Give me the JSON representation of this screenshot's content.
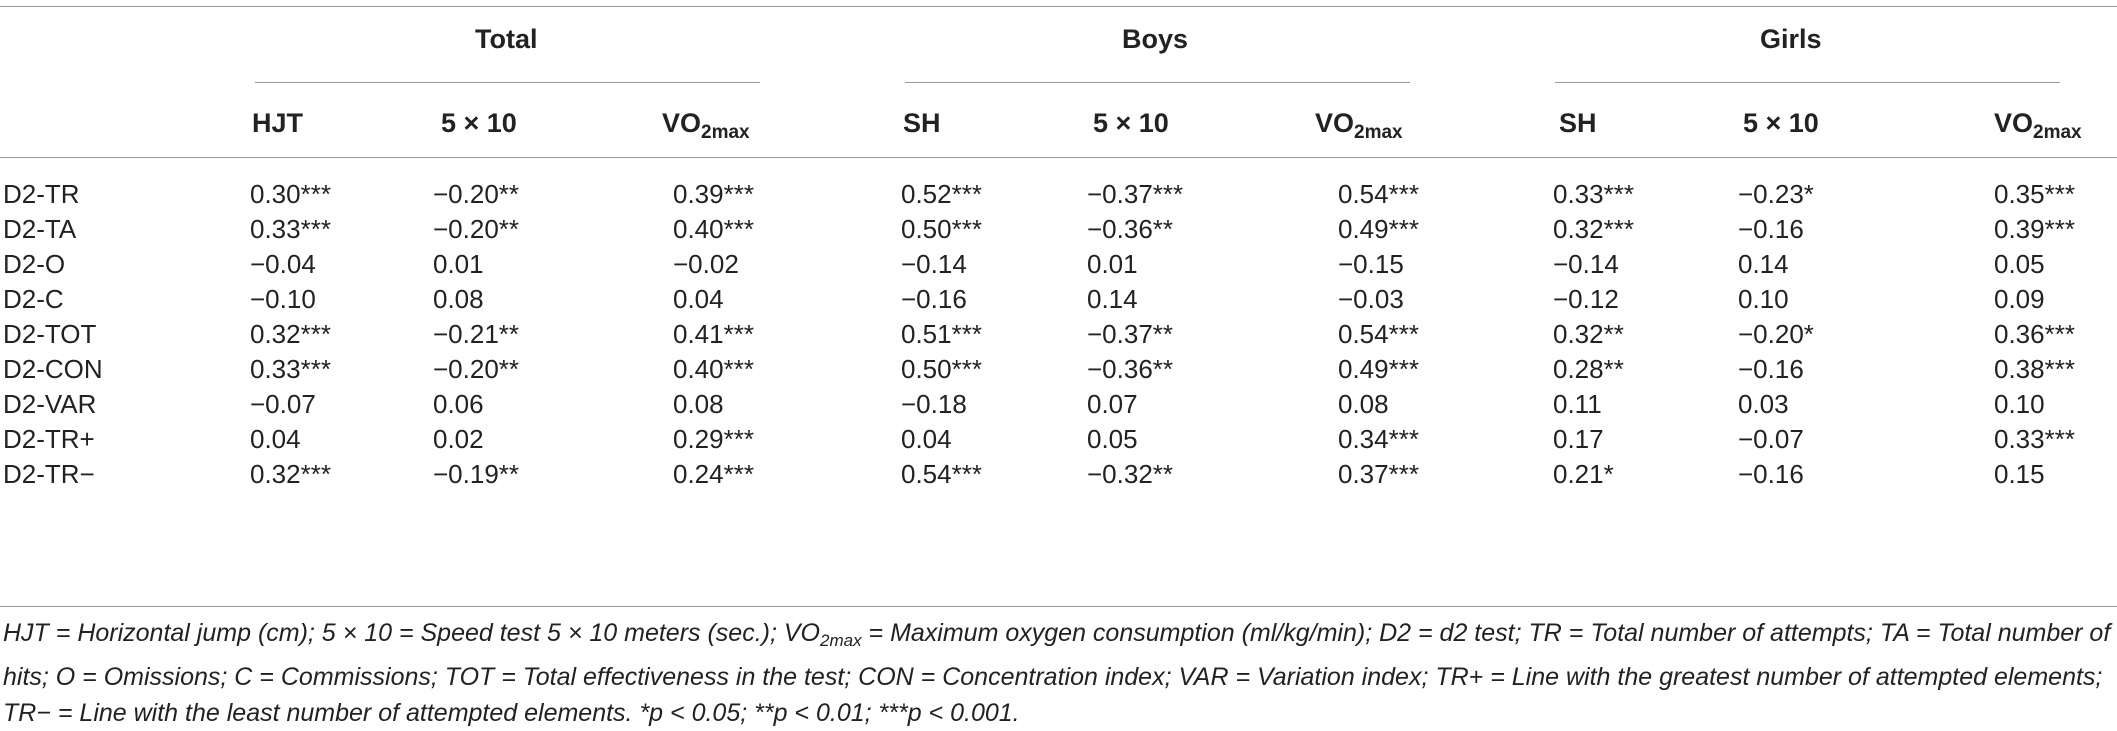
{
  "groups": {
    "total": "Total",
    "boys": "Boys",
    "girls": "Girls"
  },
  "columns": {
    "hjt": "HJT",
    "speed_total": "5 × 10",
    "vo2_base": "VO",
    "vo2_sub": "2max",
    "sh_boys": "SH",
    "speed_boys": "5 × 10",
    "sh_girls": "SH",
    "speed_girls": "5 × 10"
  },
  "rows": [
    {
      "label": "D2-TR",
      "v": [
        "0.30***",
        "−0.20**",
        "0.39***",
        "0.52***",
        "−0.37***",
        "0.54***",
        "0.33***",
        "−0.23*",
        "0.35***"
      ]
    },
    {
      "label": "D2-TA",
      "v": [
        "0.33***",
        "−0.20**",
        "0.40***",
        "0.50***",
        "−0.36**",
        "0.49***",
        "0.32***",
        "−0.16",
        "0.39***"
      ]
    },
    {
      "label": "D2-O",
      "v": [
        "−0.04",
        "0.01",
        "−0.02",
        "−0.14",
        "0.01",
        "−0.15",
        "−0.14",
        "0.14",
        "0.05"
      ]
    },
    {
      "label": "D2-C",
      "v": [
        "−0.10",
        "0.08",
        "0.04",
        "−0.16",
        "0.14",
        "−0.03",
        "−0.12",
        "0.10",
        "0.09"
      ]
    },
    {
      "label": "D2-TOT",
      "v": [
        "0.32***",
        "−0.21**",
        "0.41***",
        "0.51***",
        "−0.37**",
        "0.54***",
        "0.32**",
        "−0.20*",
        "0.36***"
      ]
    },
    {
      "label": "D2-CON",
      "v": [
        "0.33***",
        "−0.20**",
        "0.40***",
        "0.50***",
        "−0.36**",
        "0.49***",
        "0.28**",
        "−0.16",
        "0.38***"
      ]
    },
    {
      "label": "D2-VAR",
      "v": [
        "−0.07",
        "0.06",
        "0.08",
        "−0.18",
        "0.07",
        "0.08",
        "0.11",
        "0.03",
        "0.10"
      ]
    },
    {
      "label": "D2-TR+",
      "v": [
        "0.04",
        "0.02",
        "0.29***",
        "0.04",
        "0.05",
        "0.34***",
        "0.17",
        "−0.07",
        "0.33***"
      ]
    },
    {
      "label": "D2-TR−",
      "v": [
        "0.32***",
        "−0.19**",
        "0.24***",
        "0.54***",
        "−0.32**",
        "0.37***",
        "0.21*",
        "−0.16",
        "0.15"
      ]
    }
  ],
  "footnote": {
    "part1": "HJT = Horizontal jump (cm); 5 × 10 = Speed test 5 × 10 meters (sec.); VO",
    "sub": "2max",
    "part2": " = Maximum oxygen consumption (ml/kg/min); D2 = d2 test; TR = Total number of attempts; TA = Total number of hits; O = Omissions; C = Commissions; TOT = Total effectiveness in the test; CON = Concentration index; VAR = Variation index; TR+ = Line with the greatest number of attempted elements; TR− = Line with the least number of attempted elements. *p < 0.05; **p < 0.01; ***p < 0.001."
  }
}
